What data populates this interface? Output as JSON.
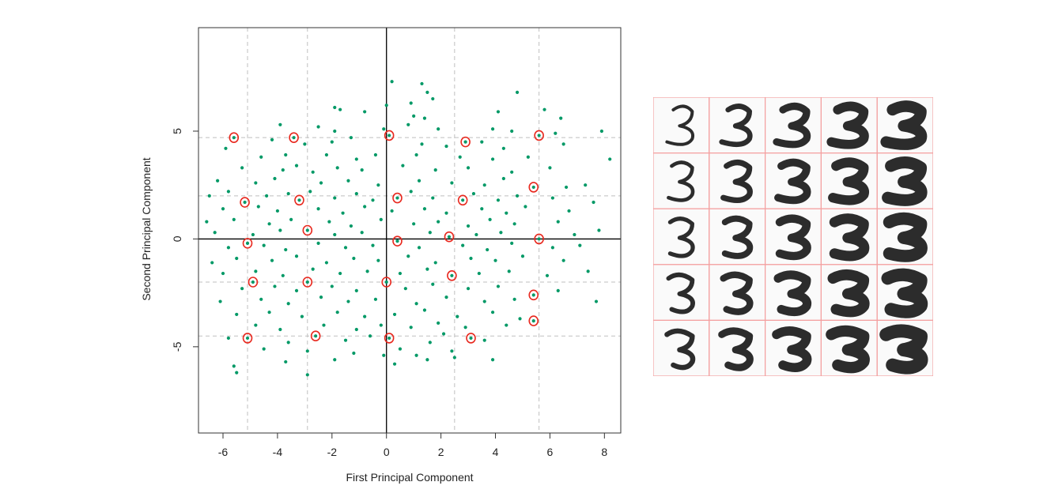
{
  "chart_data": [
    {
      "type": "scatter",
      "xlabel": "First Principal Component",
      "ylabel": "Second Principal Component",
      "xlim": [
        -6.9,
        8.6
      ],
      "ylim": [
        -9.0,
        9.8
      ],
      "xticks": [
        -6,
        -4,
        -2,
        0,
        2,
        4,
        6,
        8
      ],
      "yticks": [
        -5,
        0,
        5
      ],
      "grid_x": [
        -5.1,
        -2.9,
        2.5,
        5.6
      ],
      "grid_y": [
        -4.5,
        -2.0,
        2.0,
        4.7
      ],
      "point_color": "#009966",
      "highlight_color": "#e8281e",
      "highlighted_points": [
        {
          "x": -5.6,
          "y": 4.7
        },
        {
          "x": -3.4,
          "y": 4.7
        },
        {
          "x": 0.1,
          "y": 4.8
        },
        {
          "x": 2.9,
          "y": 4.5
        },
        {
          "x": 5.6,
          "y": 4.8
        },
        {
          "x": -5.2,
          "y": 1.7
        },
        {
          "x": -3.2,
          "y": 1.8
        },
        {
          "x": 0.4,
          "y": 1.9
        },
        {
          "x": 2.8,
          "y": 1.8
        },
        {
          "x": 5.4,
          "y": 2.4
        },
        {
          "x": -5.1,
          "y": -0.2
        },
        {
          "x": -2.9,
          "y": 0.4
        },
        {
          "x": 0.4,
          "y": -0.1
        },
        {
          "x": 2.3,
          "y": 0.1
        },
        {
          "x": 5.6,
          "y": 0.0
        },
        {
          "x": -4.9,
          "y": -2.0
        },
        {
          "x": -2.9,
          "y": -2.0
        },
        {
          "x": 0.0,
          "y": -2.0
        },
        {
          "x": 2.4,
          "y": -1.7
        },
        {
          "x": 5.4,
          "y": -2.6
        },
        {
          "x": -5.1,
          "y": -4.6
        },
        {
          "x": -2.6,
          "y": -4.5
        },
        {
          "x": 0.1,
          "y": -4.6
        },
        {
          "x": 3.1,
          "y": -4.6
        },
        {
          "x": 5.4,
          "y": -3.8
        }
      ],
      "points": [
        {
          "x": 0.2,
          "y": 7.3
        },
        {
          "x": 1.3,
          "y": 7.2
        },
        {
          "x": 1.5,
          "y": 6.8
        },
        {
          "x": 1.7,
          "y": 6.5
        },
        {
          "x": 4.8,
          "y": 6.8
        },
        {
          "x": 0.9,
          "y": 6.3
        },
        {
          "x": 0.0,
          "y": 6.2
        },
        {
          "x": -1.9,
          "y": 6.1
        },
        {
          "x": -1.7,
          "y": 6.0
        },
        {
          "x": -0.8,
          "y": 5.9
        },
        {
          "x": 1.0,
          "y": 5.7
        },
        {
          "x": 1.4,
          "y": 5.6
        },
        {
          "x": 4.1,
          "y": 5.9
        },
        {
          "x": 5.8,
          "y": 6.0
        },
        {
          "x": 6.4,
          "y": 5.6
        },
        {
          "x": -3.9,
          "y": 5.3
        },
        {
          "x": -2.5,
          "y": 5.2
        },
        {
          "x": -1.9,
          "y": 5.0
        },
        {
          "x": -0.1,
          "y": 5.1
        },
        {
          "x": 0.8,
          "y": 5.3
        },
        {
          "x": 1.9,
          "y": 5.1
        },
        {
          "x": 3.9,
          "y": 5.1
        },
        {
          "x": 4.6,
          "y": 5.0
        },
        {
          "x": 6.2,
          "y": 4.9
        },
        {
          "x": 7.9,
          "y": 5.0
        },
        {
          "x": -4.2,
          "y": 4.6
        },
        {
          "x": -3.0,
          "y": 4.4
        },
        {
          "x": -2.0,
          "y": 4.5
        },
        {
          "x": -1.3,
          "y": 4.7
        },
        {
          "x": 1.3,
          "y": 4.4
        },
        {
          "x": 2.2,
          "y": 4.3
        },
        {
          "x": 3.5,
          "y": 4.5
        },
        {
          "x": 4.3,
          "y": 4.2
        },
        {
          "x": 6.5,
          "y": 4.4
        },
        {
          "x": 8.2,
          "y": 3.7
        },
        {
          "x": -5.9,
          "y": 4.2
        },
        {
          "x": -4.6,
          "y": 3.8
        },
        {
          "x": -3.7,
          "y": 3.9
        },
        {
          "x": -2.2,
          "y": 3.9
        },
        {
          "x": -1.1,
          "y": 3.7
        },
        {
          "x": -0.4,
          "y": 3.9
        },
        {
          "x": 1.1,
          "y": 3.9
        },
        {
          "x": 2.7,
          "y": 3.8
        },
        {
          "x": 3.9,
          "y": 3.7
        },
        {
          "x": 5.2,
          "y": 3.8
        },
        {
          "x": -5.3,
          "y": 3.3
        },
        {
          "x": -3.8,
          "y": 3.2
        },
        {
          "x": -3.3,
          "y": 3.4
        },
        {
          "x": -2.7,
          "y": 3.1
        },
        {
          "x": -1.8,
          "y": 3.3
        },
        {
          "x": -0.9,
          "y": 3.2
        },
        {
          "x": 0.6,
          "y": 3.4
        },
        {
          "x": 1.8,
          "y": 3.2
        },
        {
          "x": 3.0,
          "y": 3.3
        },
        {
          "x": 4.6,
          "y": 3.1
        },
        {
          "x": 6.0,
          "y": 3.3
        },
        {
          "x": -6.2,
          "y": 2.7
        },
        {
          "x": -4.8,
          "y": 2.6
        },
        {
          "x": -4.1,
          "y": 2.8
        },
        {
          "x": -2.4,
          "y": 2.6
        },
        {
          "x": -1.4,
          "y": 2.7
        },
        {
          "x": -0.3,
          "y": 2.5
        },
        {
          "x": 1.2,
          "y": 2.7
        },
        {
          "x": 2.4,
          "y": 2.6
        },
        {
          "x": 3.6,
          "y": 2.5
        },
        {
          "x": 4.3,
          "y": 2.8
        },
        {
          "x": 6.6,
          "y": 2.4
        },
        {
          "x": 7.3,
          "y": 2.5
        },
        {
          "x": -6.5,
          "y": 2.0
        },
        {
          "x": -5.8,
          "y": 2.2
        },
        {
          "x": -4.4,
          "y": 2.0
        },
        {
          "x": -3.6,
          "y": 2.1
        },
        {
          "x": -2.8,
          "y": 2.2
        },
        {
          "x": -1.9,
          "y": 1.9
        },
        {
          "x": -1.1,
          "y": 2.1
        },
        {
          "x": -0.5,
          "y": 1.8
        },
        {
          "x": 0.9,
          "y": 2.2
        },
        {
          "x": 1.7,
          "y": 1.9
        },
        {
          "x": 3.2,
          "y": 2.1
        },
        {
          "x": 4.1,
          "y": 1.8
        },
        {
          "x": 4.8,
          "y": 2.0
        },
        {
          "x": 6.1,
          "y": 1.9
        },
        {
          "x": 7.6,
          "y": 1.7
        },
        {
          "x": -6.0,
          "y": 1.4
        },
        {
          "x": -4.7,
          "y": 1.5
        },
        {
          "x": -4.0,
          "y": 1.3
        },
        {
          "x": -2.5,
          "y": 1.4
        },
        {
          "x": -1.6,
          "y": 1.2
        },
        {
          "x": -0.8,
          "y": 1.5
        },
        {
          "x": 0.2,
          "y": 1.3
        },
        {
          "x": 1.4,
          "y": 1.4
        },
        {
          "x": 2.2,
          "y": 1.2
        },
        {
          "x": 3.5,
          "y": 1.4
        },
        {
          "x": 4.4,
          "y": 1.2
        },
        {
          "x": 5.1,
          "y": 1.5
        },
        {
          "x": 6.7,
          "y": 1.3
        },
        {
          "x": -6.6,
          "y": 0.8
        },
        {
          "x": -5.6,
          "y": 0.9
        },
        {
          "x": -4.3,
          "y": 0.7
        },
        {
          "x": -3.5,
          "y": 0.9
        },
        {
          "x": -2.1,
          "y": 0.8
        },
        {
          "x": -1.3,
          "y": 0.6
        },
        {
          "x": -0.2,
          "y": 0.9
        },
        {
          "x": 1.0,
          "y": 0.7
        },
        {
          "x": 1.9,
          "y": 0.8
        },
        {
          "x": 3.0,
          "y": 0.6
        },
        {
          "x": 3.8,
          "y": 0.9
        },
        {
          "x": 4.7,
          "y": 0.7
        },
        {
          "x": 6.3,
          "y": 0.8
        },
        {
          "x": 7.8,
          "y": 0.4
        },
        {
          "x": -6.3,
          "y": 0.3
        },
        {
          "x": -4.9,
          "y": 0.2
        },
        {
          "x": -3.9,
          "y": 0.4
        },
        {
          "x": -1.9,
          "y": 0.2
        },
        {
          "x": -0.9,
          "y": 0.3
        },
        {
          "x": 1.6,
          "y": 0.3
        },
        {
          "x": 3.3,
          "y": 0.2
        },
        {
          "x": 4.2,
          "y": 0.3
        },
        {
          "x": 6.9,
          "y": 0.2
        },
        {
          "x": -5.8,
          "y": -0.4
        },
        {
          "x": -4.5,
          "y": -0.3
        },
        {
          "x": -3.7,
          "y": -0.5
        },
        {
          "x": -2.5,
          "y": -0.2
        },
        {
          "x": -1.5,
          "y": -0.4
        },
        {
          "x": -0.5,
          "y": -0.3
        },
        {
          "x": 1.2,
          "y": -0.4
        },
        {
          "x": 2.8,
          "y": -0.3
        },
        {
          "x": 3.7,
          "y": -0.5
        },
        {
          "x": 4.6,
          "y": -0.2
        },
        {
          "x": 6.1,
          "y": -0.4
        },
        {
          "x": 7.1,
          "y": -0.3
        },
        {
          "x": -6.4,
          "y": -1.1
        },
        {
          "x": -5.5,
          "y": -0.9
        },
        {
          "x": -4.2,
          "y": -1.0
        },
        {
          "x": -3.3,
          "y": -0.8
        },
        {
          "x": -2.2,
          "y": -1.1
        },
        {
          "x": -1.2,
          "y": -0.9
        },
        {
          "x": -0.3,
          "y": -1.0
        },
        {
          "x": 0.8,
          "y": -0.8
        },
        {
          "x": 1.8,
          "y": -1.1
        },
        {
          "x": 3.1,
          "y": -0.9
        },
        {
          "x": 4.0,
          "y": -1.0
        },
        {
          "x": 5.0,
          "y": -0.8
        },
        {
          "x": 6.5,
          "y": -1.0
        },
        {
          "x": -6.0,
          "y": -1.6
        },
        {
          "x": -4.8,
          "y": -1.5
        },
        {
          "x": -3.8,
          "y": -1.7
        },
        {
          "x": -2.7,
          "y": -1.4
        },
        {
          "x": -1.7,
          "y": -1.6
        },
        {
          "x": -0.7,
          "y": -1.5
        },
        {
          "x": 0.5,
          "y": -1.6
        },
        {
          "x": 1.5,
          "y": -1.4
        },
        {
          "x": 3.4,
          "y": -1.6
        },
        {
          "x": 4.5,
          "y": -1.5
        },
        {
          "x": 5.9,
          "y": -1.7
        },
        {
          "x": 7.4,
          "y": -1.5
        },
        {
          "x": -5.3,
          "y": -2.3
        },
        {
          "x": -4.1,
          "y": -2.2
        },
        {
          "x": -3.3,
          "y": -2.4
        },
        {
          "x": -2.0,
          "y": -2.2
        },
        {
          "x": -1.1,
          "y": -2.4
        },
        {
          "x": 0.7,
          "y": -2.3
        },
        {
          "x": 1.7,
          "y": -2.1
        },
        {
          "x": 3.0,
          "y": -2.3
        },
        {
          "x": 4.1,
          "y": -2.2
        },
        {
          "x": 6.3,
          "y": -2.4
        },
        {
          "x": -6.1,
          "y": -2.9
        },
        {
          "x": -4.6,
          "y": -2.8
        },
        {
          "x": -3.6,
          "y": -3.0
        },
        {
          "x": -2.4,
          "y": -2.7
        },
        {
          "x": -1.4,
          "y": -2.9
        },
        {
          "x": -0.4,
          "y": -2.8
        },
        {
          "x": 1.1,
          "y": -3.0
        },
        {
          "x": 2.2,
          "y": -2.7
        },
        {
          "x": 3.6,
          "y": -2.9
        },
        {
          "x": 4.7,
          "y": -2.8
        },
        {
          "x": 7.7,
          "y": -2.9
        },
        {
          "x": -5.5,
          "y": -3.5
        },
        {
          "x": -4.3,
          "y": -3.4
        },
        {
          "x": -3.1,
          "y": -3.6
        },
        {
          "x": -1.8,
          "y": -3.4
        },
        {
          "x": -0.8,
          "y": -3.6
        },
        {
          "x": 0.3,
          "y": -3.5
        },
        {
          "x": 1.4,
          "y": -3.3
        },
        {
          "x": 2.6,
          "y": -3.6
        },
        {
          "x": 3.9,
          "y": -3.4
        },
        {
          "x": 4.9,
          "y": -3.7
        },
        {
          "x": -4.8,
          "y": -4.0
        },
        {
          "x": -3.9,
          "y": -4.2
        },
        {
          "x": -2.3,
          "y": -4.0
        },
        {
          "x": -1.1,
          "y": -4.2
        },
        {
          "x": -0.2,
          "y": -4.0
        },
        {
          "x": 0.9,
          "y": -4.1
        },
        {
          "x": 1.9,
          "y": -3.9
        },
        {
          "x": 2.9,
          "y": -4.1
        },
        {
          "x": 4.4,
          "y": -4.0
        },
        {
          "x": -5.8,
          "y": -4.6
        },
        {
          "x": -3.6,
          "y": -4.8
        },
        {
          "x": -1.5,
          "y": -4.7
        },
        {
          "x": -0.6,
          "y": -4.5
        },
        {
          "x": 1.6,
          "y": -4.8
        },
        {
          "x": 2.1,
          "y": -4.4
        },
        {
          "x": 3.6,
          "y": -4.7
        },
        {
          "x": -4.5,
          "y": -5.1
        },
        {
          "x": -2.9,
          "y": -5.2
        },
        {
          "x": -1.2,
          "y": -5.3
        },
        {
          "x": 0.5,
          "y": -5.1
        },
        {
          "x": 1.1,
          "y": -5.4
        },
        {
          "x": 2.4,
          "y": -5.2
        },
        {
          "x": -5.6,
          "y": -5.9
        },
        {
          "x": -3.7,
          "y": -5.7
        },
        {
          "x": -1.9,
          "y": -5.6
        },
        {
          "x": 0.3,
          "y": -5.8
        },
        {
          "x": 1.5,
          "y": -5.6
        },
        {
          "x": 2.5,
          "y": -5.5
        },
        {
          "x": 3.9,
          "y": -5.6
        },
        {
          "x": -5.5,
          "y": -6.2
        },
        {
          "x": -2.9,
          "y": -6.3
        },
        {
          "x": -0.1,
          "y": -5.4
        }
      ]
    },
    {
      "type": "image-grid",
      "description_rows": 5,
      "description_cols": 5,
      "grid_line_color": "#f4a0a0"
    }
  ]
}
